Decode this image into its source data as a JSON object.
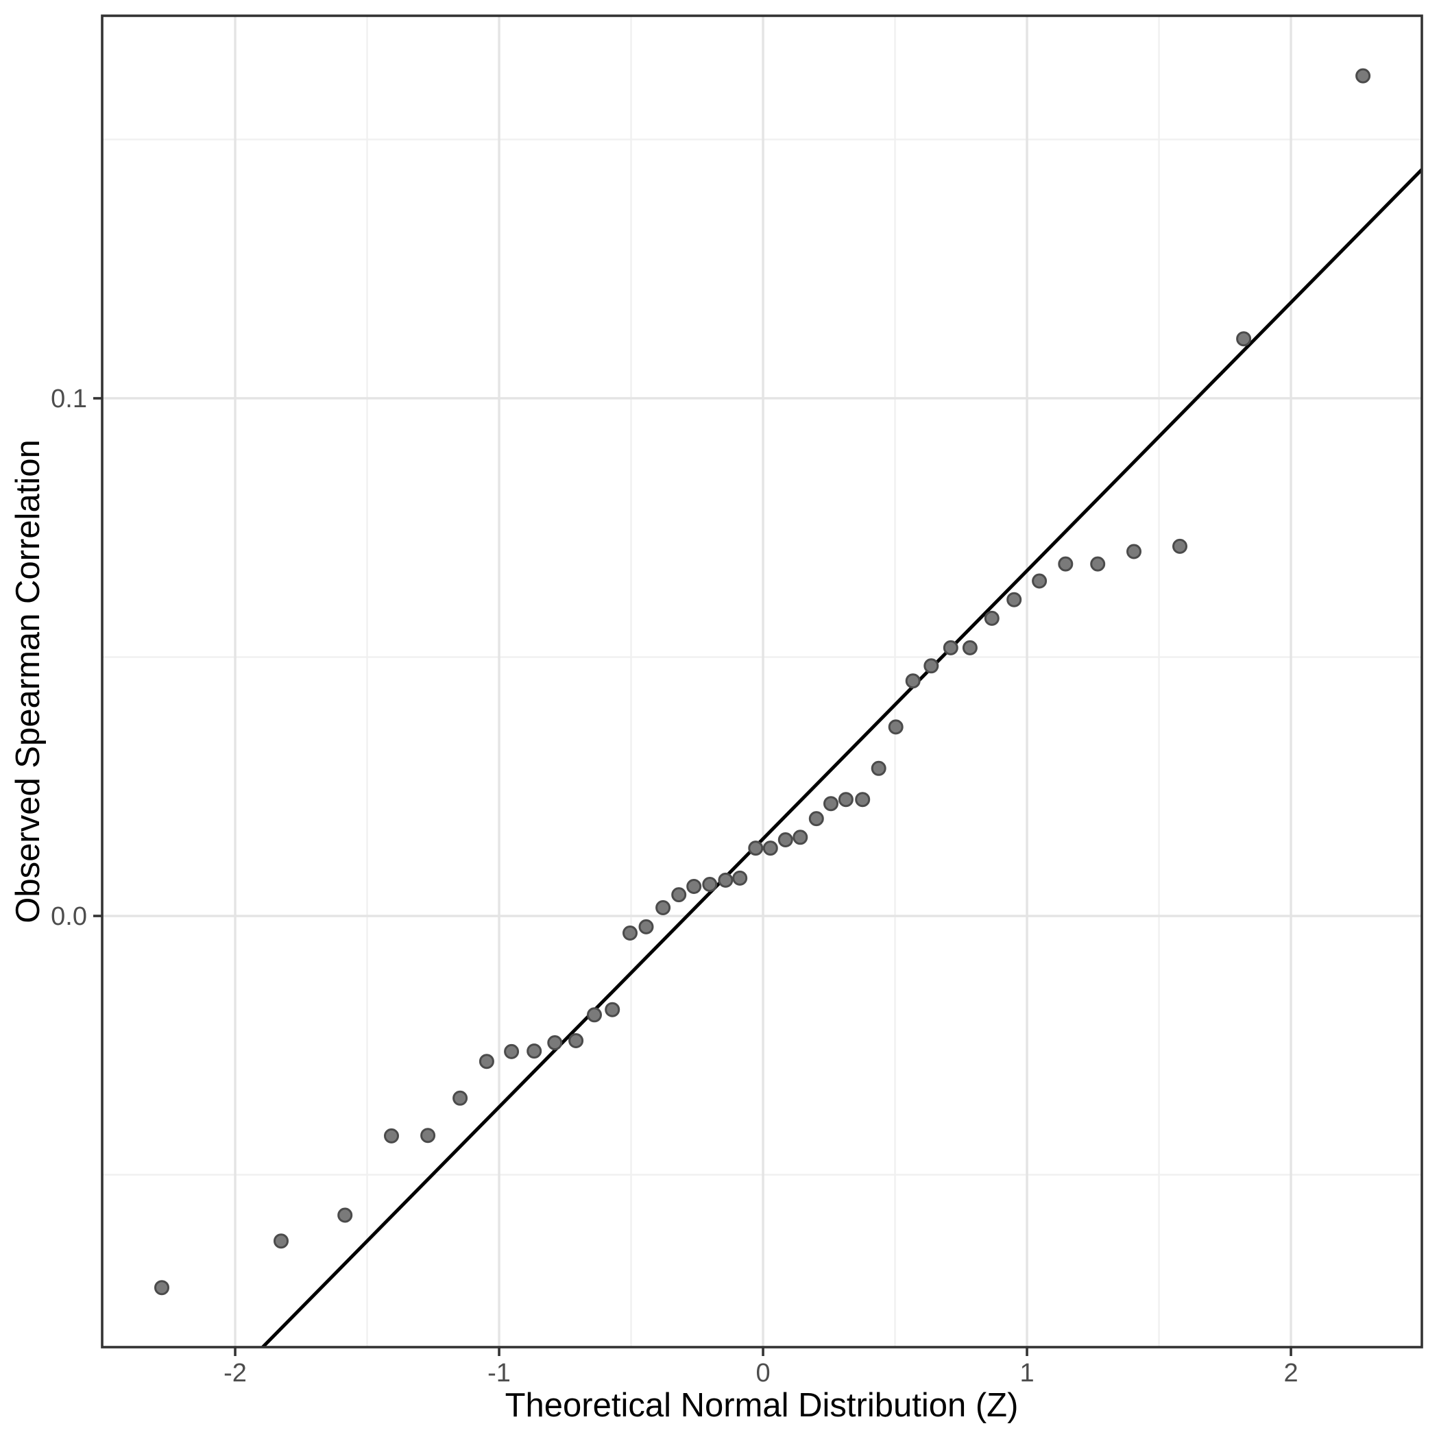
{
  "figure": {
    "background_color": "#ffffff",
    "panel_background_color": "#ffffff",
    "panel_border_color": "#333333",
    "major_grid_color": "#e4e4e4",
    "minor_grid_color": "#f0f0f0",
    "tick_mark_color": "#333333",
    "tick_label_color": "#4d4d4d",
    "point_fill_color": "#7a7a7a",
    "point_stroke_color": "#4b4b4b",
    "reference_line_color": "#000000"
  },
  "chart_data": {
    "type": "scatter",
    "title": "",
    "xlabel": "Theoretical Normal Distribution (Z)",
    "ylabel": "Observed Spearman Correlation",
    "xlim": [
      -2.504,
      2.496
    ],
    "ylim": [
      -0.0833,
      0.1739
    ],
    "grid": "major and minor, light gray on white, panel border on",
    "legend_position": "none",
    "x_major_ticks": [
      -2,
      -1,
      0,
      1,
      2
    ],
    "x_tick_labels": [
      "-2",
      "-1",
      "0",
      "1",
      "2"
    ],
    "x_minor_ticks": [
      -1.5,
      -0.5,
      0.5,
      1.5
    ],
    "y_major_ticks": [
      0.0,
      0.1
    ],
    "y_tick_labels": [
      "0.0",
      "0.1"
    ],
    "y_minor_ticks": [
      -0.05,
      0.05,
      0.15
    ],
    "series": [
      {
        "name": "sample-quantiles",
        "marker": "filled circle, gray fill with darker gray ring",
        "points": [
          [
            -2.278,
            -0.0718
          ],
          [
            -1.826,
            -0.0628
          ],
          [
            -1.584,
            -0.0578
          ],
          [
            -1.408,
            -0.0425
          ],
          [
            -1.27,
            -0.0424
          ],
          [
            -1.148,
            -0.0352
          ],
          [
            -1.047,
            -0.0281
          ],
          [
            -0.953,
            -0.0262
          ],
          [
            -0.867,
            -0.0261
          ],
          [
            -0.789,
            -0.0245
          ],
          [
            -0.709,
            -0.0241
          ],
          [
            -0.639,
            -0.0191
          ],
          [
            -0.571,
            -0.0181
          ],
          [
            -0.504,
            -0.0033
          ],
          [
            -0.443,
            -0.0021
          ],
          [
            -0.379,
            0.0016
          ],
          [
            -0.319,
            0.0041
          ],
          [
            -0.262,
            0.0057
          ],
          [
            -0.202,
            0.0061
          ],
          [
            -0.142,
            0.0069
          ],
          [
            -0.088,
            0.0073
          ],
          [
            -0.028,
            0.0131
          ],
          [
            0.028,
            0.0131
          ],
          [
            0.085,
            0.0147
          ],
          [
            0.141,
            0.0152
          ],
          [
            0.202,
            0.0188
          ],
          [
            0.257,
            0.0217
          ],
          [
            0.314,
            0.0225
          ],
          [
            0.377,
            0.0225
          ],
          [
            0.438,
            0.0285
          ],
          [
            0.503,
            0.0365
          ],
          [
            0.568,
            0.0454
          ],
          [
            0.637,
            0.0483
          ],
          [
            0.711,
            0.0518
          ],
          [
            0.784,
            0.0518
          ],
          [
            0.867,
            0.0575
          ],
          [
            0.951,
            0.0611
          ],
          [
            1.047,
            0.0647
          ],
          [
            1.146,
            0.068
          ],
          [
            1.268,
            0.068
          ],
          [
            1.405,
            0.0704
          ],
          [
            1.579,
            0.0714
          ],
          [
            1.821,
            0.1115
          ],
          [
            2.273,
            0.1623
          ]
        ]
      }
    ],
    "reference_line": {
      "name": "qq-line",
      "intercept": 0.0149,
      "slope": 0.0518
    }
  }
}
